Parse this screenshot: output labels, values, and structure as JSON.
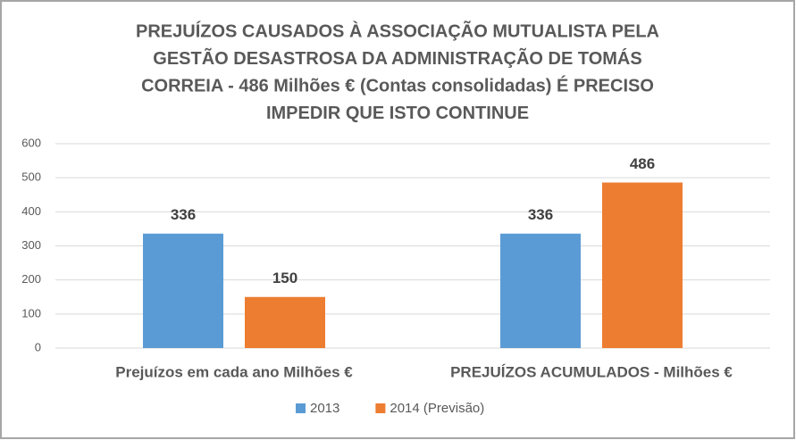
{
  "chart_data": {
    "type": "bar",
    "title": [
      "PREJUÍZOS CAUSADOS À ASSOCIAÇÃO MUTUALISTA PELA",
      "GESTÃO DESASTROSA  DA ADMINISTRAÇÃO DE  TOMÁS",
      "CORREIA - 486 Milhões € (Contas consolidadas)  É PRECISO",
      "IMPEDIR QUE ISTO CONTINUE"
    ],
    "categories": [
      "Prejuízos em cada ano Milhões €",
      "PREJUÍZOS ACUMULADOS - Milhões €"
    ],
    "series": [
      {
        "name": "2013",
        "color": "#5b9bd5",
        "values": [
          336,
          336
        ]
      },
      {
        "name": "2014 (Previsão)",
        "color": "#ed7d31",
        "values": [
          150,
          486
        ]
      }
    ],
    "ylim": [
      0,
      600
    ],
    "yticks": [
      0,
      100,
      200,
      300,
      400,
      500,
      600
    ],
    "grid": true,
    "legend": "bottom"
  }
}
